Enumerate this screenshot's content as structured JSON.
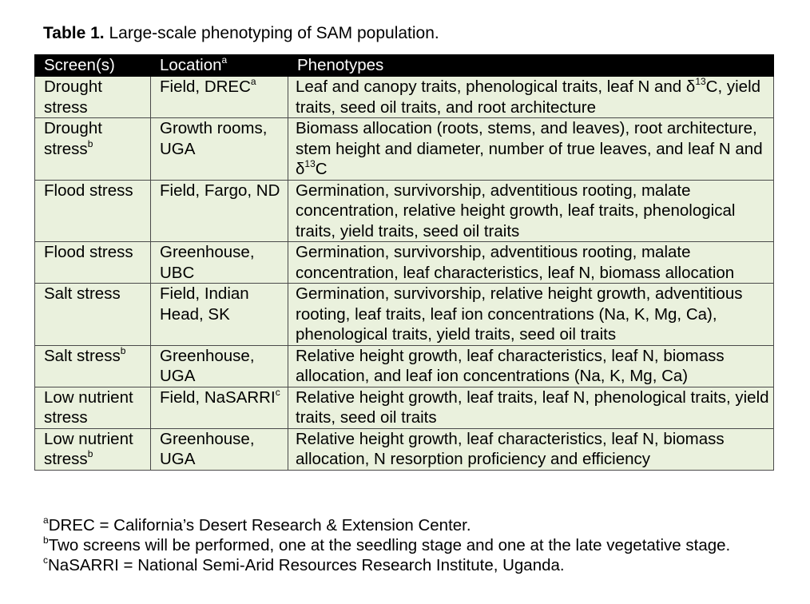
{
  "caption": {
    "label": "Table 1.",
    "text": " Large-scale phenotyping of SAM population."
  },
  "table": {
    "headers": [
      {
        "text": "Screen(s)",
        "sup": ""
      },
      {
        "text": "Location",
        "sup": "a"
      },
      {
        "text": "Phenotypes",
        "sup": ""
      }
    ],
    "rows": [
      {
        "screen": [
          "Drought stress",
          ""
        ],
        "location": [
          "Field, DREC",
          "a"
        ],
        "phenotypes": [
          "Leaf and canopy traits, phenological traits, leaf N and δ",
          "13",
          "C, yield traits, seed oil traits, and root architecture"
        ]
      },
      {
        "screen": [
          "Drought stress",
          "b"
        ],
        "location": [
          "Growth rooms, UGA",
          ""
        ],
        "phenotypes": [
          "Biomass allocation (roots, stems, and leaves), root architecture, stem height and diameter, number of true leaves, and leaf N and δ",
          "13",
          "C"
        ]
      },
      {
        "screen": [
          "Flood stress",
          ""
        ],
        "location": [
          "Field, Fargo, ND",
          ""
        ],
        "phenotypes": [
          "Germination, survivorship, adventitious rooting, malate concentration, relative height growth, leaf traits, phenological traits, yield traits, seed oil traits",
          "",
          ""
        ]
      },
      {
        "screen": [
          "Flood stress",
          ""
        ],
        "location": [
          "Greenhouse, UBC",
          ""
        ],
        "phenotypes": [
          "Germination, survivorship, adventitious rooting, malate concentration, leaf characteristics, leaf N, biomass allocation",
          "",
          ""
        ]
      },
      {
        "screen": [
          "Salt stress",
          ""
        ],
        "location": [
          "Field, Indian Head, SK",
          ""
        ],
        "phenotypes": [
          "Germination, survivorship, relative height growth, adventitious rooting, leaf traits, leaf ion concentrations (Na, K, Mg, Ca), phenological traits, yield traits, seed oil traits",
          "",
          ""
        ]
      },
      {
        "screen": [
          "Salt stress",
          "b"
        ],
        "location": [
          "Greenhouse, UGA",
          ""
        ],
        "phenotypes": [
          "Relative height growth, leaf characteristics, leaf N, biomass allocation, and leaf ion concentrations (Na, K, Mg, Ca)",
          "",
          ""
        ]
      },
      {
        "screen": [
          "Low nutrient stress",
          ""
        ],
        "location": [
          "Field, NaSARRI",
          "c"
        ],
        "phenotypes": [
          "Relative height growth, leaf traits, leaf N, phenological traits, yield traits, seed oil traits",
          "",
          ""
        ]
      },
      {
        "screen": [
          "Low nutrient stress",
          "b"
        ],
        "location": [
          "Greenhouse, UGA",
          ""
        ],
        "phenotypes": [
          "Relative height growth, leaf characteristics, leaf N, biomass allocation, N resorption proficiency and efficiency",
          "",
          ""
        ]
      }
    ]
  },
  "footnotes": [
    {
      "mark": "a",
      "text": "DREC = California’s Desert Research & Extension Center."
    },
    {
      "mark": "b",
      "text": "Two screens will be performed, one at the seedling stage and one at the late vegetative stage."
    },
    {
      "mark": "c",
      "text": "NaSARRI = National Semi-Arid Resources Research Institute, Uganda."
    }
  ]
}
